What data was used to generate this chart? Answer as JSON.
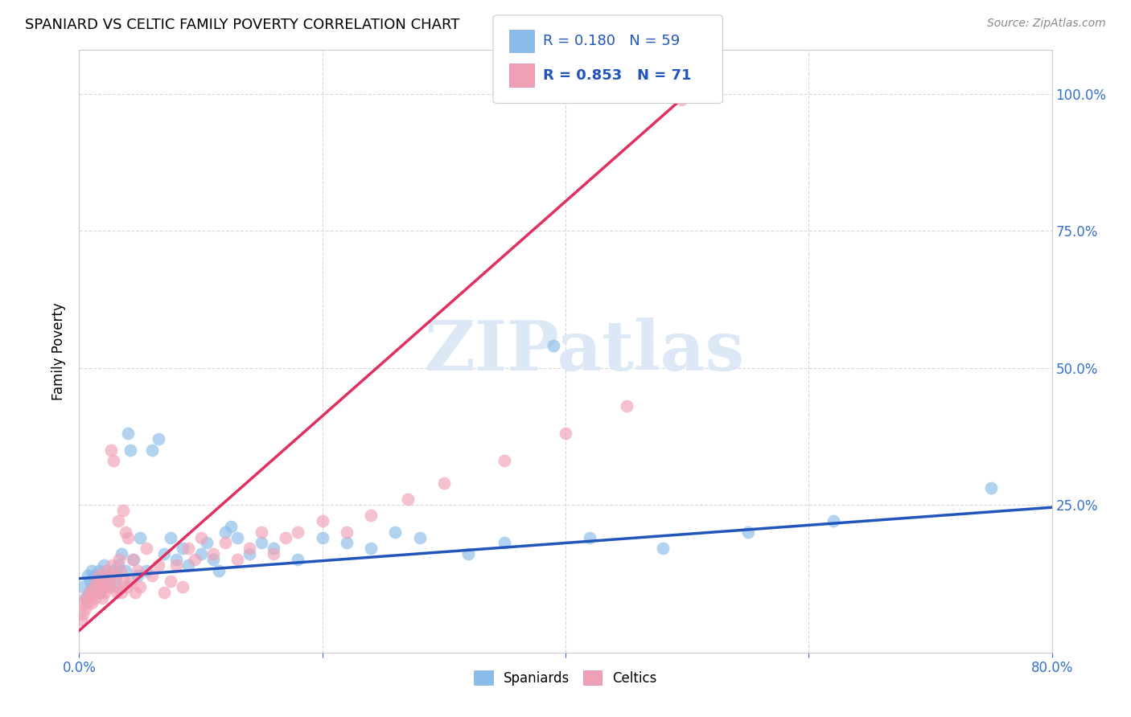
{
  "title": "SPANIARD VS CELTIC FAMILY POVERTY CORRELATION CHART",
  "source": "Source: ZipAtlas.com",
  "ylabel": "Family Poverty",
  "xlim": [
    0.0,
    0.8
  ],
  "ylim": [
    -0.02,
    1.08
  ],
  "spaniard_color": "#89bce8",
  "celtic_color": "#f0a0b5",
  "spaniard_line_color": "#2255bb",
  "celtic_line_color": "#e03060",
  "watermark_text": "ZIPatlas",
  "watermark_color": "#dce8f5",
  "background_color": "#ffffff",
  "grid_color": "#d8d8d8",
  "tick_color": "#3370cc",
  "legend_text_color": "#2255bb",
  "spaniard_R": "0.180",
  "spaniard_N": "59",
  "celtic_R": "0.853",
  "celtic_N": "71",
  "spaniard_points_x": [
    0.003,
    0.005,
    0.007,
    0.008,
    0.009,
    0.01,
    0.011,
    0.012,
    0.013,
    0.015,
    0.016,
    0.017,
    0.018,
    0.019,
    0.02,
    0.022,
    0.025,
    0.028,
    0.03,
    0.032,
    0.035,
    0.038,
    0.04,
    0.042,
    0.045,
    0.048,
    0.05,
    0.055,
    0.06,
    0.065,
    0.07,
    0.075,
    0.08,
    0.085,
    0.09,
    0.1,
    0.105,
    0.11,
    0.115,
    0.12,
    0.125,
    0.13,
    0.14,
    0.15,
    0.16,
    0.18,
    0.2,
    0.22,
    0.24,
    0.26,
    0.28,
    0.32,
    0.35,
    0.39,
    0.42,
    0.48,
    0.55,
    0.62,
    0.75
  ],
  "spaniard_points_y": [
    0.1,
    0.08,
    0.12,
    0.09,
    0.11,
    0.13,
    0.1,
    0.12,
    0.11,
    0.1,
    0.13,
    0.09,
    0.12,
    0.11,
    0.14,
    0.12,
    0.1,
    0.13,
    0.11,
    0.14,
    0.16,
    0.13,
    0.38,
    0.35,
    0.15,
    0.12,
    0.19,
    0.13,
    0.35,
    0.37,
    0.16,
    0.19,
    0.15,
    0.17,
    0.14,
    0.16,
    0.18,
    0.15,
    0.13,
    0.2,
    0.21,
    0.19,
    0.16,
    0.18,
    0.17,
    0.15,
    0.19,
    0.18,
    0.17,
    0.2,
    0.19,
    0.16,
    0.18,
    0.54,
    0.19,
    0.17,
    0.2,
    0.22,
    0.28
  ],
  "celtic_points_x": [
    0.002,
    0.003,
    0.004,
    0.005,
    0.006,
    0.007,
    0.008,
    0.009,
    0.01,
    0.011,
    0.012,
    0.013,
    0.014,
    0.015,
    0.016,
    0.017,
    0.018,
    0.019,
    0.02,
    0.021,
    0.022,
    0.023,
    0.024,
    0.025,
    0.026,
    0.027,
    0.028,
    0.029,
    0.03,
    0.031,
    0.032,
    0.033,
    0.034,
    0.035,
    0.036,
    0.037,
    0.038,
    0.039,
    0.04,
    0.042,
    0.044,
    0.046,
    0.048,
    0.05,
    0.055,
    0.06,
    0.065,
    0.07,
    0.075,
    0.08,
    0.085,
    0.09,
    0.095,
    0.1,
    0.11,
    0.12,
    0.13,
    0.14,
    0.15,
    0.16,
    0.17,
    0.18,
    0.2,
    0.22,
    0.24,
    0.27,
    0.3,
    0.35,
    0.4,
    0.45,
    0.495
  ],
  "celtic_points_y": [
    0.04,
    0.05,
    0.07,
    0.06,
    0.08,
    0.07,
    0.09,
    0.08,
    0.07,
    0.09,
    0.1,
    0.08,
    0.11,
    0.1,
    0.12,
    0.09,
    0.11,
    0.08,
    0.1,
    0.09,
    0.13,
    0.1,
    0.12,
    0.11,
    0.35,
    0.14,
    0.33,
    0.1,
    0.12,
    0.09,
    0.22,
    0.15,
    0.13,
    0.09,
    0.24,
    0.11,
    0.2,
    0.1,
    0.19,
    0.11,
    0.15,
    0.09,
    0.13,
    0.1,
    0.17,
    0.12,
    0.14,
    0.09,
    0.11,
    0.14,
    0.1,
    0.17,
    0.15,
    0.19,
    0.16,
    0.18,
    0.15,
    0.17,
    0.2,
    0.16,
    0.19,
    0.2,
    0.22,
    0.2,
    0.23,
    0.26,
    0.29,
    0.33,
    0.38,
    0.43,
    0.99
  ],
  "spaniard_line_x": [
    0.0,
    0.8
  ],
  "spaniard_line_y": [
    0.115,
    0.245
  ],
  "celtic_line_x": [
    0.0,
    0.495
  ],
  "celtic_line_y": [
    0.02,
    0.99
  ]
}
